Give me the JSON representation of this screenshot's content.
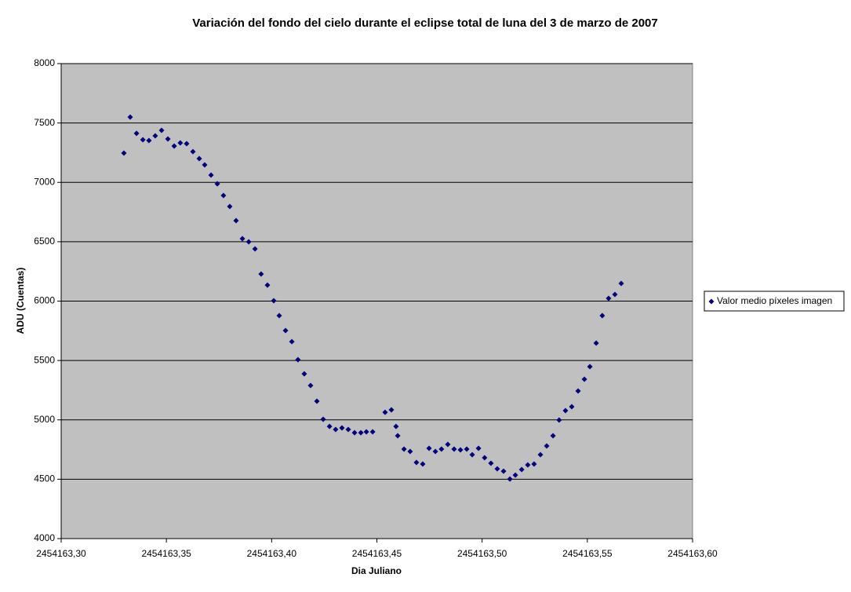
{
  "chart_data": {
    "type": "scatter",
    "title": "Variación del fondo del cielo durante el eclipse total de luna del 3 de marzo de 2007",
    "x_label": "Dia Juliano",
    "y_label": "ADU (Cuentas)",
    "xlim": [
      2454163.3,
      2454163.6
    ],
    "xticks": [
      {
        "value": 2454163.3,
        "label": "2454163,30"
      },
      {
        "value": 2454163.35,
        "label": "2454163,35"
      },
      {
        "value": 2454163.4,
        "label": "2454163,40"
      },
      {
        "value": 2454163.45,
        "label": "2454163,45"
      },
      {
        "value": 2454163.5,
        "label": "2454163,50"
      },
      {
        "value": 2454163.55,
        "label": "2454163,55"
      },
      {
        "value": 2454163.6,
        "label": "2454163,60"
      }
    ],
    "ylim": [
      4000,
      8000
    ],
    "yticks": [
      4000,
      4500,
      5000,
      5500,
      6000,
      6500,
      7000,
      7500,
      8000
    ],
    "grid": true,
    "legend": "right",
    "series": [
      {
        "name": "Valor medio píxeles imagen",
        "color": "#000080",
        "x": [
          2454163.3298,
          2454163.3328,
          2454163.3358,
          2454163.3388,
          2454163.3417,
          2454163.3447,
          2454163.3477,
          2454163.3507,
          2454163.3537,
          2454163.3566,
          2454163.3596,
          2454163.3626,
          2454163.3656,
          2454163.3682,
          2454163.3712,
          2454163.3742,
          2454163.3771,
          2454163.3801,
          2454163.3831,
          2454163.3861,
          2454163.3891,
          2454163.3921,
          2454163.395,
          2454163.398,
          2454163.401,
          2454163.4036,
          2454163.4066,
          2454163.4096,
          2454163.4125,
          2454163.4155,
          2454163.4185,
          2454163.4215,
          2454163.4245,
          2454163.4275,
          2454163.4304,
          2454163.4334,
          2454163.4364,
          2454163.4394,
          2454163.4424,
          2454163.445,
          2454163.448,
          2454163.4539,
          2454163.4569,
          2454163.4591,
          2454163.4599,
          2454163.4629,
          2454163.4658,
          2454163.4688,
          2454163.4718,
          2454163.4748,
          2454163.4778,
          2454163.4807,
          2454163.4837,
          2454163.4867,
          2454163.4897,
          2454163.4927,
          2454163.4953,
          2454163.4983,
          2454163.5012,
          2454163.5042,
          2454163.5072,
          2454163.5102,
          2454163.5132,
          2454163.5158,
          2454163.5188,
          2454163.5217,
          2454163.5247,
          2454163.5277,
          2454163.5307,
          2454163.5337,
          2454163.5366,
          2454163.5396,
          2454163.5426,
          2454163.5456,
          2454163.5486,
          2454163.5512,
          2454163.5542,
          2454163.5571,
          2454163.5601,
          2454163.5631,
          2454163.5661
        ],
        "values": [
          7246,
          7550,
          7412,
          7359,
          7352,
          7392,
          7438,
          7365,
          7306,
          7332,
          7326,
          7259,
          7200,
          7147,
          7061,
          6988,
          6889,
          6797,
          6678,
          6526,
          6499,
          6440,
          6228,
          6135,
          6003,
          5878,
          5752,
          5659,
          5507,
          5388,
          5289,
          5157,
          5005,
          4945,
          4919,
          4932,
          4919,
          4892,
          4892,
          4899,
          4899,
          5064,
          5084,
          4945,
          4866,
          4754,
          4734,
          4641,
          4628,
          4760,
          4734,
          4754,
          4793,
          4754,
          4747,
          4754,
          4707,
          4760,
          4681,
          4635,
          4588,
          4568,
          4502,
          4535,
          4582,
          4621,
          4628,
          4707,
          4780,
          4866,
          4998,
          5078,
          5111,
          5243,
          5342,
          5448,
          5646,
          5878,
          6023,
          6056,
          6149
        ]
      }
    ]
  }
}
